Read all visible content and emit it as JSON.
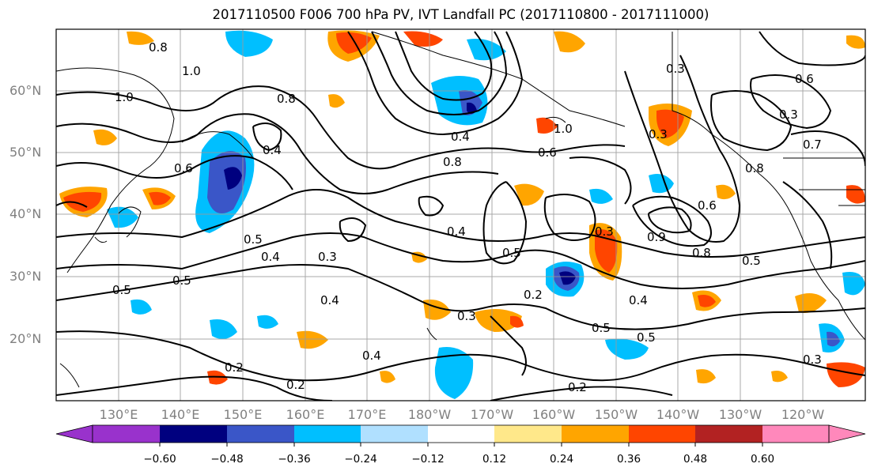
{
  "title": "2017110500 F006 700 hPa PV, IVT Landfall PC (2017110800 - 2017111000)",
  "lat_labels": [
    "60°N",
    "50°N",
    "40°N",
    "30°N",
    "20°N"
  ],
  "lon_labels": [
    "130°E",
    "140°E",
    "150°E",
    "160°E",
    "170°E",
    "180°W",
    "170°W",
    "160°W",
    "150°W",
    "140°W",
    "130°W",
    "120°W"
  ],
  "colorbar": {
    "ticks": [
      "−0.60",
      "−0.48",
      "−0.36",
      "−0.24",
      "−0.12",
      "0.12",
      "0.24",
      "0.36",
      "0.48",
      "0.60"
    ],
    "colors": [
      "#9932cc",
      "#00007f",
      "#3a56c8",
      "#00bfff",
      "#b0e0ff",
      "#ffffff",
      "#ffe88a",
      "#ffa500",
      "#ff4500",
      "#b22222",
      "#ff88bb"
    ]
  },
  "contour_labels": [
    "0.8",
    "1.0",
    "1.0",
    "0.8",
    "0.4",
    "0.6",
    "0.5",
    "0.4",
    "0.3",
    "0.5",
    "0.5",
    "0.4",
    "0.2",
    "0.2",
    "0.4",
    "0.3",
    "0.8",
    "0.4",
    "0.6",
    "1.0",
    "0.5",
    "0.2",
    "0.5",
    "0.5",
    "0.4",
    "0.3",
    "0.9",
    "0.8",
    "0.5",
    "0.2",
    "0.3",
    "0.7",
    "0.3",
    "0.8",
    "0.6",
    "0.3",
    "0.6",
    "0.4",
    "0.3"
  ]
}
